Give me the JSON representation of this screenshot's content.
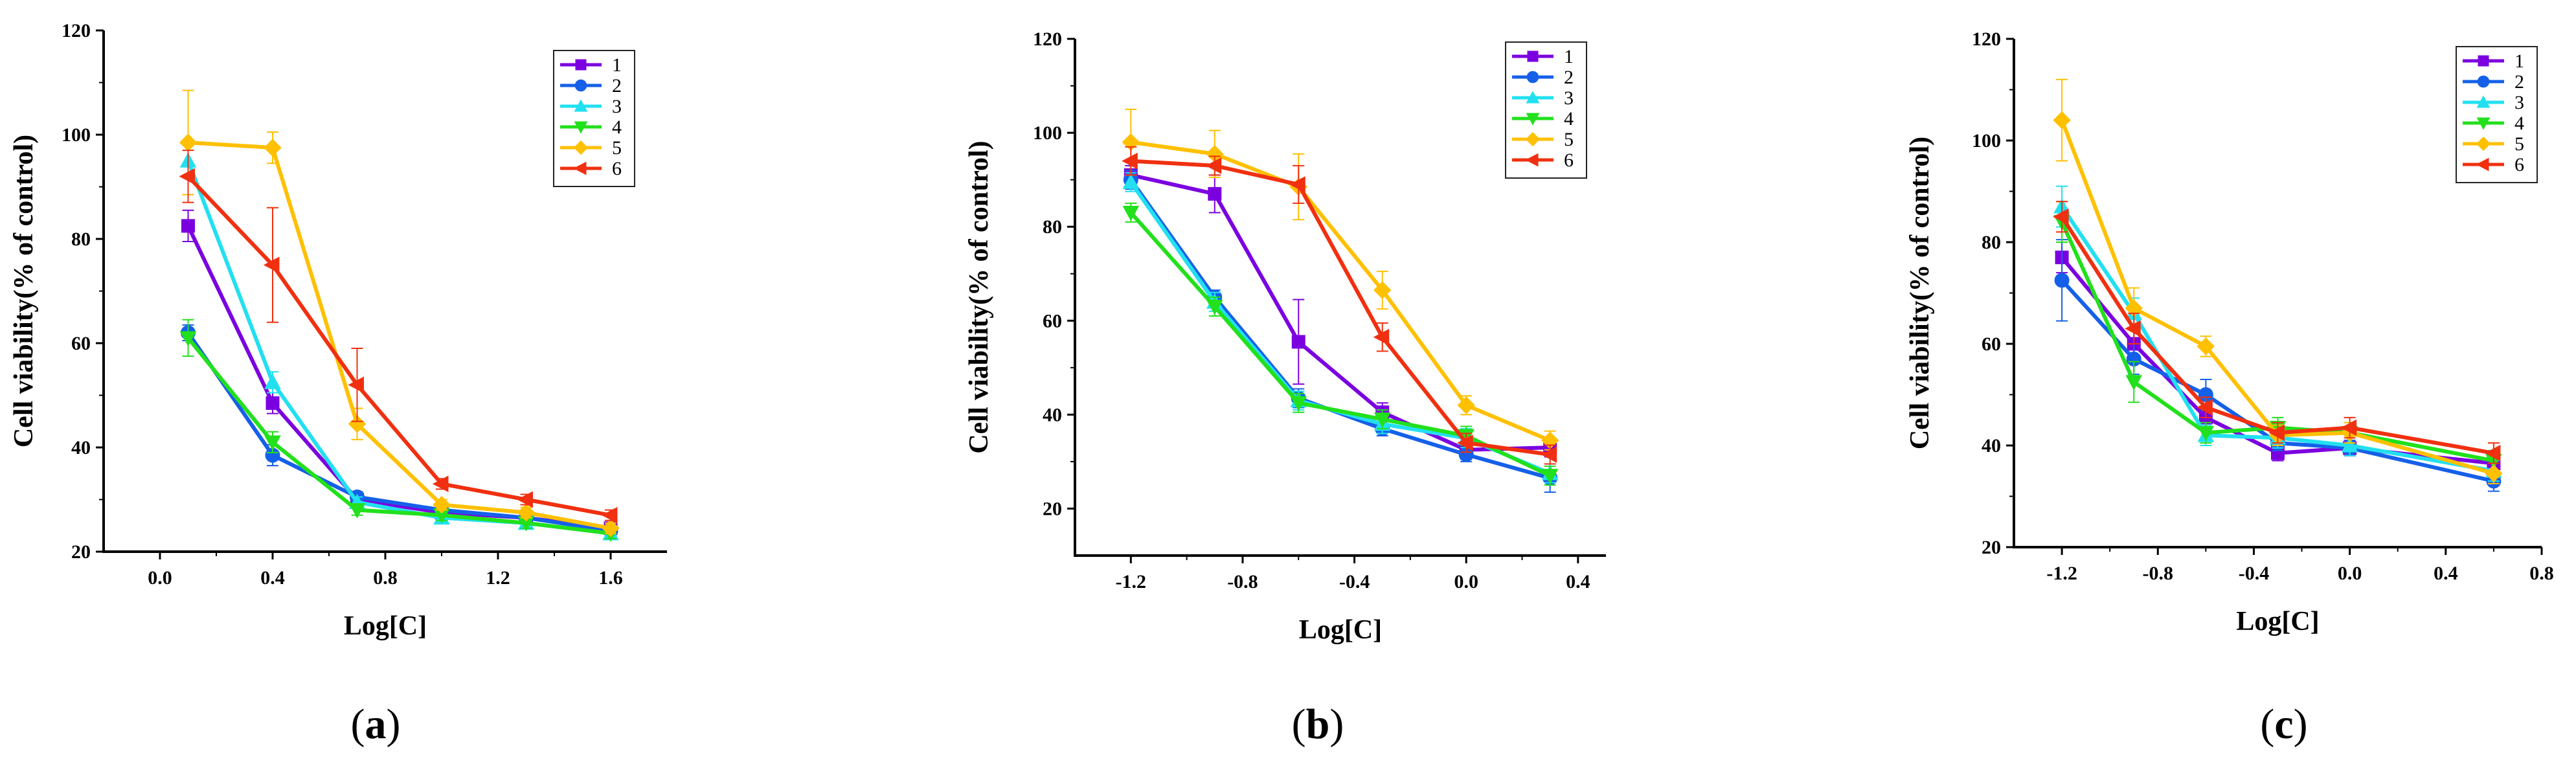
{
  "chart_data": [
    {
      "type": "line",
      "panel": "(a)",
      "panel_parts": [
        "(",
        "a",
        ")"
      ],
      "xlabel": "Log[C]",
      "ylabel": "Cell viability(% of control)",
      "xlim": [
        -0.2,
        1.8
      ],
      "ylim": [
        20,
        120
      ],
      "xticks": [
        0.0,
        0.4,
        0.8,
        1.2,
        1.6
      ],
      "xtick_labels": [
        "0.0",
        "0.4",
        "0.8",
        "1.2",
        "1.6"
      ],
      "yticks": [
        20,
        40,
        60,
        80,
        100,
        120
      ],
      "ytick_labels": [
        "20",
        "40",
        "60",
        "80",
        "100",
        "120"
      ],
      "x": [
        0.1,
        0.4,
        0.7,
        1.0,
        1.3,
        1.6
      ],
      "legend_position": "top-right",
      "series": [
        {
          "name": "1",
          "color": "#7b00e0",
          "marker": "square",
          "values": [
            82.5,
            48.5,
            30.0,
            27.5,
            26.5,
            24.5
          ],
          "errors": [
            3,
            2,
            1,
            1,
            1,
            1
          ]
        },
        {
          "name": "2",
          "color": "#1560e8",
          "marker": "circle",
          "values": [
            62.0,
            38.5,
            30.5,
            28.0,
            26.5,
            24.0
          ],
          "errors": [
            1.5,
            2,
            1,
            1,
            1,
            1
          ]
        },
        {
          "name": "3",
          "color": "#22e0f0",
          "marker": "triangle-up",
          "values": [
            95.0,
            52.5,
            29.5,
            26.5,
            25.5,
            23.5
          ],
          "errors": [
            3,
            2,
            1,
            1,
            1,
            1
          ]
        },
        {
          "name": "4",
          "color": "#22e01c",
          "marker": "triangle-down",
          "values": [
            61.0,
            41.0,
            28.0,
            27.0,
            25.5,
            23.5
          ],
          "errors": [
            3.5,
            2,
            1,
            1,
            1,
            1
          ]
        },
        {
          "name": "5",
          "color": "#ffc000",
          "marker": "diamond",
          "values": [
            98.5,
            97.5,
            44.5,
            29.0,
            27.5,
            24.5
          ],
          "errors": [
            10,
            3,
            3,
            1,
            1,
            1
          ]
        },
        {
          "name": "6",
          "color": "#f03010",
          "marker": "triangle-left",
          "values": [
            92.0,
            75.0,
            52.0,
            33.0,
            30.0,
            27.0
          ],
          "errors": [
            5,
            11,
            7,
            1,
            1,
            1
          ]
        }
      ]
    },
    {
      "type": "line",
      "panel": "(b)",
      "panel_parts": [
        "(",
        "b",
        ")"
      ],
      "xlabel": "Log[C]",
      "ylabel": "Cell viability(% of control)",
      "xlim": [
        -1.4,
        0.5
      ],
      "ylim": [
        10,
        120
      ],
      "xticks": [
        -1.2,
        -0.8,
        -0.4,
        0.0,
        0.4
      ],
      "xtick_labels": [
        "-1.2",
        "-0.8",
        "-0.4",
        "0.0",
        "0.4"
      ],
      "yticks": [
        20,
        40,
        60,
        80,
        100,
        120
      ],
      "ytick_labels": [
        "20",
        "40",
        "60",
        "80",
        "100",
        "120"
      ],
      "x": [
        -1.2,
        -0.9,
        -0.6,
        -0.3,
        0.0,
        0.3
      ],
      "legend_position": "top-right",
      "series": [
        {
          "name": "1",
          "color": "#7b00e0",
          "marker": "square",
          "values": [
            91.0,
            87.0,
            55.5,
            40.5,
            32.5,
            33.0
          ],
          "errors": [
            2,
            4,
            9,
            2,
            2,
            2
          ]
        },
        {
          "name": "2",
          "color": "#1560e8",
          "marker": "circle",
          "values": [
            90.0,
            65.0,
            43.5,
            37.0,
            31.5,
            26.5
          ],
          "errors": [
            2,
            1.5,
            2,
            1.5,
            1.5,
            3
          ]
        },
        {
          "name": "3",
          "color": "#22e0f0",
          "marker": "triangle-up",
          "values": [
            89.5,
            64.0,
            43.0,
            38.0,
            35.0,
            27.5
          ],
          "errors": [
            2,
            2,
            2,
            2,
            2,
            2
          ]
        },
        {
          "name": "4",
          "color": "#22e01c",
          "marker": "triangle-down",
          "values": [
            83.0,
            63.0,
            42.5,
            39.0,
            35.5,
            27.0
          ],
          "errors": [
            2,
            2,
            2,
            2,
            2,
            2
          ]
        },
        {
          "name": "5",
          "color": "#ffc000",
          "marker": "diamond",
          "values": [
            98.0,
            95.5,
            88.5,
            66.5,
            42.0,
            34.5
          ],
          "errors": [
            7,
            5,
            7,
            4,
            2,
            2
          ]
        },
        {
          "name": "6",
          "color": "#f03010",
          "marker": "triangle-left",
          "values": [
            94.0,
            93.0,
            89.0,
            56.5,
            34.0,
            31.5
          ],
          "errors": [
            3,
            2,
            4,
            3,
            2,
            2
          ]
        }
      ]
    },
    {
      "type": "line",
      "panel": "(c)",
      "panel_parts": [
        "(",
        "c",
        ")"
      ],
      "xlabel": "Log[C]",
      "ylabel": "Cell viability(% of control)",
      "xlim": [
        -1.4,
        0.8
      ],
      "ylim": [
        20,
        120
      ],
      "xticks": [
        -1.2,
        -0.8,
        -0.4,
        0.0,
        0.4,
        0.8
      ],
      "xtick_labels": [
        "-1.2",
        "-0.8",
        "-0.4",
        "0.0",
        "0.4",
        "0.8"
      ],
      "yticks": [
        20,
        40,
        60,
        80,
        100,
        120
      ],
      "ytick_labels": [
        "20",
        "40",
        "60",
        "80",
        "100",
        "120"
      ],
      "x": [
        -1.2,
        -0.9,
        -0.6,
        -0.3,
        0.0,
        0.6
      ],
      "legend_position": "top-right",
      "series": [
        {
          "name": "1",
          "color": "#7b00e0",
          "marker": "square",
          "values": [
            77.0,
            60.0,
            45.5,
            38.5,
            39.5,
            36.5
          ],
          "errors": [
            3,
            3,
            2,
            1.5,
            1.5,
            1.5
          ]
        },
        {
          "name": "2",
          "color": "#1560e8",
          "marker": "circle",
          "values": [
            72.5,
            57.0,
            50.0,
            40.5,
            39.5,
            33.0
          ],
          "errors": [
            8,
            3,
            3,
            1.5,
            1.5,
            2
          ]
        },
        {
          "name": "3",
          "color": "#22e0f0",
          "marker": "triangle-up",
          "values": [
            87.0,
            66.0,
            42.0,
            41.5,
            40.0,
            35.0
          ],
          "errors": [
            4,
            3,
            2,
            2,
            2,
            2
          ]
        },
        {
          "name": "4",
          "color": "#22e01c",
          "marker": "triangle-down",
          "values": [
            84.0,
            52.5,
            42.5,
            43.5,
            42.5,
            37.0
          ],
          "errors": [
            4,
            4,
            2,
            2,
            2,
            2
          ]
        },
        {
          "name": "5",
          "color": "#ffc000",
          "marker": "diamond",
          "values": [
            104.0,
            67.0,
            59.5,
            42.0,
            42.5,
            34.5
          ],
          "errors": [
            8,
            4,
            2,
            2,
            2,
            2
          ]
        },
        {
          "name": "6",
          "color": "#f03010",
          "marker": "triangle-left",
          "values": [
            85.0,
            63.0,
            47.5,
            42.5,
            43.5,
            38.5
          ],
          "errors": [
            3,
            3,
            2,
            2,
            2,
            2
          ]
        }
      ]
    }
  ]
}
